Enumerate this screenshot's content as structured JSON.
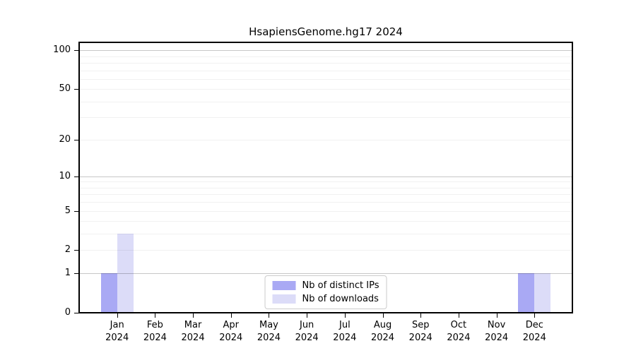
{
  "chart_data": {
    "type": "bar",
    "title": "HsapiensGenome.hg17 2024",
    "year_label": "2024",
    "categories": [
      "Jan",
      "Feb",
      "Mar",
      "Apr",
      "May",
      "Jun",
      "Jul",
      "Aug",
      "Sep",
      "Oct",
      "Nov",
      "Dec"
    ],
    "series": [
      {
        "name": "Nb of distinct IPs",
        "color": "#a9a9f4",
        "values": [
          1,
          0,
          0,
          0,
          0,
          0,
          0,
          0,
          0,
          0,
          0,
          1
        ]
      },
      {
        "name": "Nb of downloads",
        "color": "#dcdcf8",
        "values": [
          3,
          0,
          0,
          0,
          0,
          0,
          0,
          0,
          0,
          0,
          0,
          1
        ]
      }
    ],
    "xlabel": "",
    "ylabel": "",
    "yticks": [
      0,
      1,
      2,
      5,
      10,
      20,
      50,
      100
    ],
    "grid_major": [
      1,
      10,
      100
    ],
    "grid_minor": [
      2,
      3,
      4,
      5,
      6,
      7,
      8,
      9,
      20,
      30,
      40,
      50,
      60,
      70,
      80,
      90
    ],
    "scale": "log1p",
    "ylim": [
      0,
      115
    ],
    "grid": "on",
    "legend_position": "lower center",
    "axis_color": "#000000",
    "background_color": "#ffffff"
  }
}
